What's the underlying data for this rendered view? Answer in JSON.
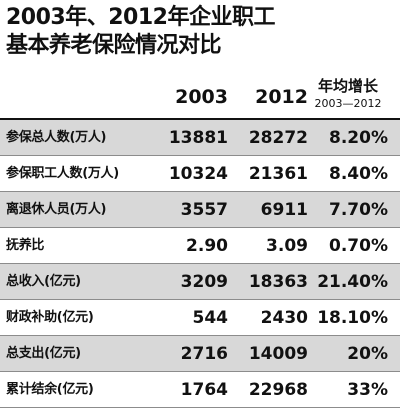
{
  "title_line1": "2003年、2012年企业职工",
  "title_line2": "基本养老保险情况对比",
  "headers": {
    "col2003": "2003",
    "col2012": "2012",
    "growth": "年均增长",
    "growth_period": "2003—2012"
  },
  "chart_data": {
    "type": "table",
    "columns": [
      "2003",
      "2012",
      "年均增长 2003—2012"
    ],
    "rows": [
      {
        "label": "参保总人数(万人)",
        "v2003": "13881",
        "v2012": "28272",
        "growth": "8.20%"
      },
      {
        "label": "参保职工人数(万人)",
        "v2003": "10324",
        "v2012": "21361",
        "growth": "8.40%"
      },
      {
        "label": "离退休人员(万人)",
        "v2003": "3557",
        "v2012": "6911",
        "growth": "7.70%"
      },
      {
        "label": "抚养比",
        "v2003": "2.90",
        "v2012": "3.09",
        "growth": "0.70%"
      },
      {
        "label": "总收入(亿元)",
        "v2003": "3209",
        "v2012": "18363",
        "growth": "21.40%"
      },
      {
        "label": "财政补助(亿元)",
        "v2003": "544",
        "v2012": "2430",
        "growth": "18.10%"
      },
      {
        "label": "总支出(亿元)",
        "v2003": "2716",
        "v2012": "14009",
        "growth": "20%"
      },
      {
        "label": "累计结余(亿元)",
        "v2003": "1764",
        "v2012": "22968",
        "growth": "33%"
      }
    ]
  }
}
